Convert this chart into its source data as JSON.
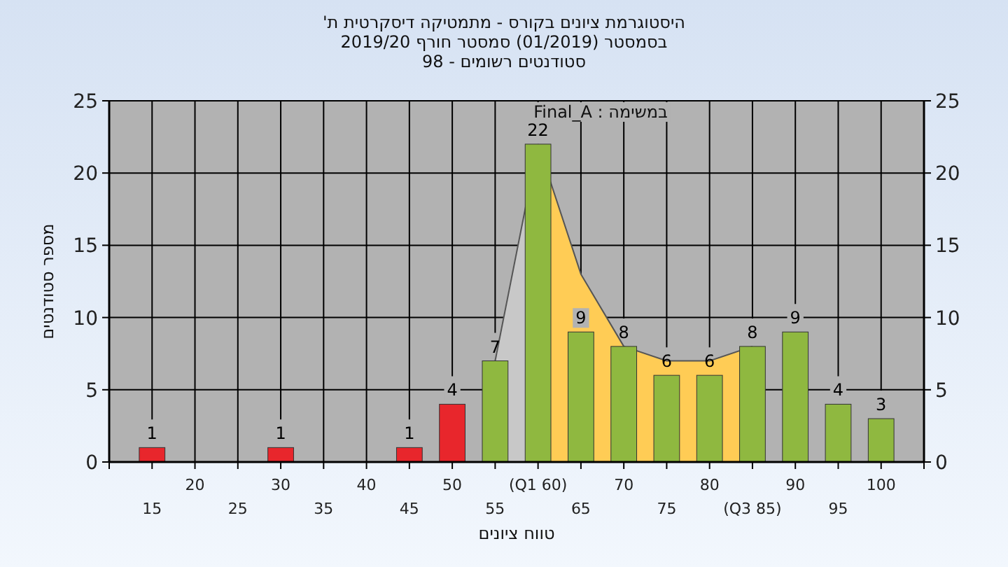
{
  "chart_data": {
    "type": "bar",
    "title": "היסטוגרמת ציונים בקורס - מתמטיקה דיסקרטית ת'",
    "subtitle": "בסמסטר (01/2019) סמסטר חורף 2019/20\nסטודנטים רשומים - 98",
    "xlabel": "טווח ציונים",
    "ylabel": "מספר סטודנטים",
    "annotations": [
      "במשימה : Final_A"
    ],
    "categories": [
      "15",
      "20",
      "25",
      "30",
      "35",
      "40",
      "45",
      "50",
      "55",
      "(Q1 60)",
      "65",
      "70",
      "75",
      "80",
      "(Q3 85)",
      "90",
      "95",
      "100"
    ],
    "series": [
      {
        "type": "area",
        "color": "#c8c8c8",
        "values": [
          null,
          null,
          null,
          null,
          null,
          null,
          null,
          null,
          7,
          22,
          null,
          null,
          null,
          null,
          null,
          null,
          null,
          null
        ]
      },
      {
        "type": "area",
        "color": "#ffcc55",
        "values": [
          null,
          null,
          null,
          null,
          null,
          null,
          null,
          null,
          null,
          22,
          13,
          8,
          7,
          7,
          8,
          null,
          null,
          null
        ]
      },
      {
        "type": "bar",
        "values": [
          1,
          0,
          0,
          1,
          0,
          0,
          1,
          4,
          7,
          22,
          9,
          8,
          6,
          6,
          8,
          9,
          4,
          3
        ],
        "colors": [
          "#e8262c",
          "#e8262c",
          "#e8262c",
          "#e8262c",
          "#e8262c",
          "#e8262c",
          "#e8262c",
          "#e8262c",
          "#8fb840",
          "#8fb840",
          "#8fb840",
          "#8fb840",
          "#8fb840",
          "#8fb840",
          "#8fb840",
          "#8fb840",
          "#8fb840",
          "#8fb840"
        ],
        "value_labels": [
          "1",
          null,
          null,
          "1",
          null,
          null,
          "1",
          "4",
          "7",
          "22",
          "9",
          "8",
          "6",
          "6",
          "8",
          "9",
          "4",
          "3"
        ]
      }
    ],
    "ylim": [
      0,
      25
    ],
    "yticks": [
      0,
      5,
      10,
      15,
      20,
      25
    ],
    "y2lim": [
      0,
      25
    ],
    "y2ticks": [
      0,
      5,
      10,
      15,
      20,
      25
    ],
    "grid": true
  }
}
